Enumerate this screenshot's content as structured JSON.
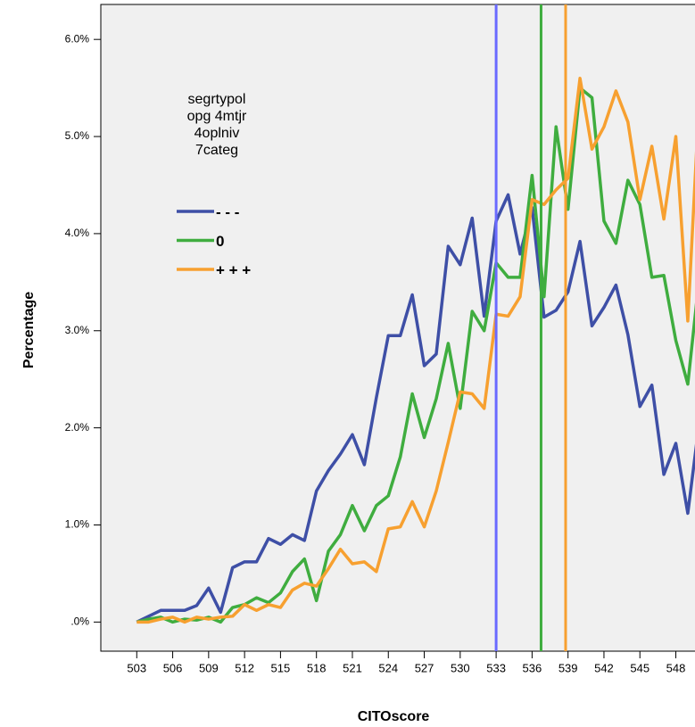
{
  "chart_data": {
    "type": "line",
    "y_label": "Percentage",
    "x_label": "CITOscore",
    "legend_title": [
      "segrtypol",
      "opg 4mtjr",
      "4oplniv",
      "7categ"
    ],
    "x": [
      503,
      504,
      505,
      506,
      507,
      508,
      509,
      510,
      511,
      512,
      513,
      514,
      515,
      516,
      517,
      518,
      519,
      520,
      521,
      522,
      523,
      524,
      525,
      526,
      527,
      528,
      529,
      530,
      531,
      532,
      533,
      534,
      535,
      536,
      537,
      538,
      539,
      540,
      541,
      542,
      543,
      544,
      545,
      546,
      547,
      548,
      549,
      550
    ],
    "series": [
      {
        "name": "- - -",
        "color": "#3e4fa6",
        "values": [
          0,
          0.06,
          0.12,
          0.12,
          0.12,
          0.17,
          0.35,
          0.1,
          0.56,
          0.62,
          0.62,
          0.86,
          0.8,
          0.9,
          0.84,
          1.35,
          1.56,
          1.73,
          1.93,
          1.62,
          2.31,
          2.95,
          2.95,
          3.37,
          2.64,
          2.76,
          3.87,
          3.68,
          4.16,
          3.15,
          4.13,
          4.4,
          3.79,
          4.27,
          3.14,
          3.21,
          3.4,
          3.92,
          3.05,
          3.24,
          3.47,
          2.96,
          2.22,
          2.44,
          1.52,
          1.84,
          1.12,
          2.1
        ]
      },
      {
        "name": "0",
        "color": "#3fad3f",
        "values": [
          0,
          0.03,
          0.05,
          0,
          0.03,
          0.02,
          0.05,
          0,
          0.15,
          0.18,
          0.25,
          0.2,
          0.3,
          0.52,
          0.65,
          0.22,
          0.73,
          0.9,
          1.2,
          0.94,
          1.2,
          1.3,
          1.7,
          2.35,
          1.9,
          2.3,
          2.87,
          2.2,
          3.2,
          3.0,
          3.7,
          3.55,
          3.55,
          4.6,
          3.35,
          5.1,
          4.25,
          5.5,
          5.4,
          4.13,
          3.9,
          4.55,
          4.3,
          3.55,
          3.57,
          2.9,
          2.45,
          3.6
        ]
      },
      {
        "name": "+ + +",
        "color": "#f7a030",
        "values": [
          0,
          0,
          0.03,
          0.05,
          0,
          0.05,
          0.03,
          0.05,
          0.06,
          0.18,
          0.12,
          0.18,
          0.15,
          0.33,
          0.4,
          0.37,
          0.55,
          0.75,
          0.6,
          0.62,
          0.52,
          0.96,
          0.98,
          1.24,
          0.98,
          1.35,
          1.85,
          2.37,
          2.35,
          2.2,
          3.17,
          3.15,
          3.35,
          4.35,
          4.3,
          4.45,
          4.57,
          5.6,
          4.87,
          5.1,
          5.47,
          5.15,
          4.35,
          4.9,
          4.15,
          5.0,
          3.1,
          5.5
        ]
      }
    ],
    "reference_lines": [
      {
        "x": 533,
        "color": "#6a6aff"
      },
      {
        "x": 536.75,
        "color": "#3fad3f"
      },
      {
        "x": 538.8,
        "color": "#f7a030"
      }
    ],
    "xlim": [
      500,
      549.6
    ],
    "xticks": [
      503,
      506,
      509,
      512,
      515,
      518,
      521,
      524,
      527,
      530,
      533,
      536,
      539,
      542,
      545,
      548
    ],
    "ylim": [
      -0.3,
      6.36
    ],
    "yticks": [
      {
        "value": 0,
        "label": ".0%"
      },
      {
        "value": 1,
        "label": "1.0%"
      },
      {
        "value": 2,
        "label": "2.0%"
      },
      {
        "value": 3,
        "label": "3.0%"
      },
      {
        "value": 4,
        "label": "4.0%"
      },
      {
        "value": 5,
        "label": "5.0%"
      },
      {
        "value": 6,
        "label": "6.0%"
      }
    ],
    "background": "#f0f0f0"
  }
}
